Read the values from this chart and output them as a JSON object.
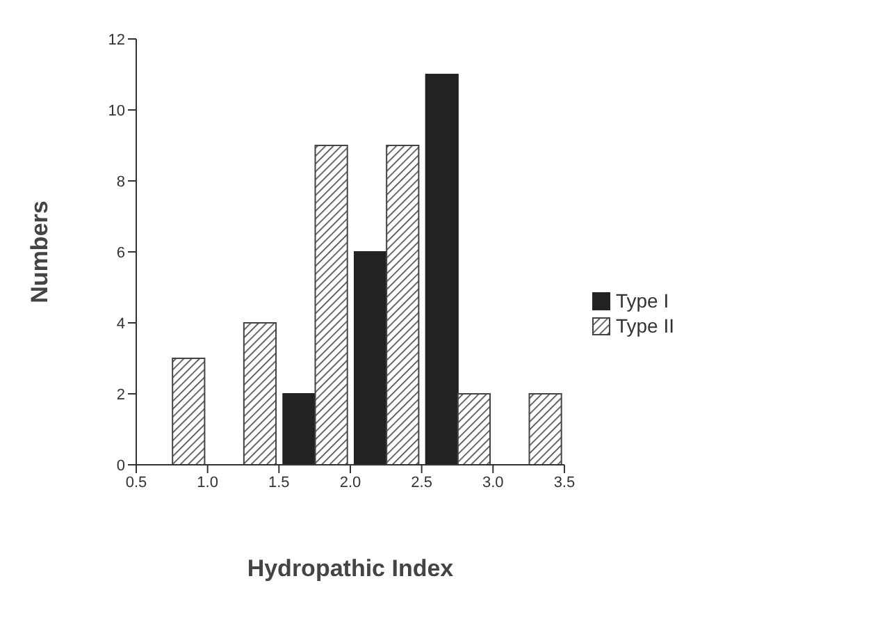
{
  "chart_data": {
    "type": "bar",
    "xlabel": "Hydropathic Index",
    "ylabel": "Numbers",
    "x": [
      0.75,
      1.25,
      1.75,
      2.25,
      2.75,
      3.25
    ],
    "series": [
      {
        "name": "Type I",
        "color": "#222222",
        "values": [
          0,
          0,
          2,
          6,
          11,
          0
        ]
      },
      {
        "name": "Type II",
        "color": "#444444",
        "values": [
          3,
          4,
          9,
          9,
          2,
          2
        ]
      }
    ],
    "xlim": [
      0.5,
      3.5
    ],
    "xticks": [
      0.5,
      {
        "value": 1,
        "label": "1.0"
      },
      1.5,
      {
        "value": 2,
        "label": "2.0"
      },
      2.5,
      {
        "value": 3,
        "label": "3.0"
      },
      3.5
    ],
    "ylim": [
      0,
      12
    ],
    "yticks": [
      0,
      2,
      4,
      6,
      8,
      10,
      12
    ],
    "grid": false,
    "legend": "right"
  }
}
